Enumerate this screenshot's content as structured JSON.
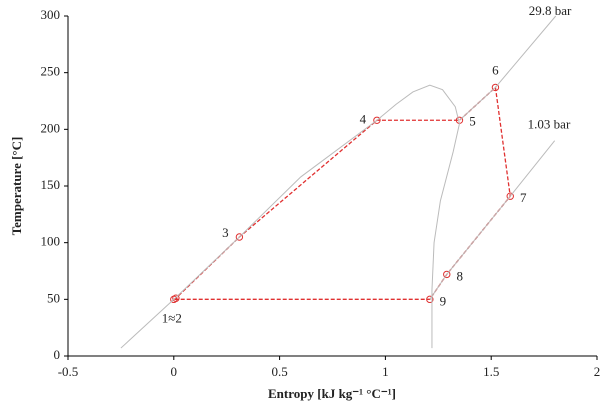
{
  "chart_data": {
    "type": "line",
    "xlabel": "Entropy [kJ kg⁻¹ °C⁻¹]",
    "ylabel": "Temperature [°C]",
    "xlim": [
      -0.5,
      2
    ],
    "xticks": [
      -0.5,
      0,
      0.5,
      1,
      1.5,
      2
    ],
    "ylim": [
      0,
      300
    ],
    "yticks": [
      0,
      50,
      100,
      150,
      200,
      250,
      300
    ],
    "grid": false,
    "series": [
      {
        "color": "#e03030",
        "dashed": true,
        "markers": true,
        "closed": true,
        "x": [
          0,
          0.01,
          0.31,
          0.96,
          1.35,
          1.52,
          1.59,
          1.29,
          1.21
        ],
        "values": [
          50,
          51,
          105,
          208,
          208,
          237,
          141,
          72,
          50
        ],
        "point_labels": [
          "1≈2",
          null,
          "3",
          "4",
          "5",
          "6",
          "7",
          "8",
          "9"
        ]
      },
      {
        "color": "#bbbbbb",
        "x": [
          -0.25,
          0.0,
          0.31,
          0.6,
          0.96,
          1.05,
          1.13,
          1.21,
          1.27,
          1.33,
          1.35,
          1.32,
          1.26,
          1.23,
          1.22,
          1.22
        ],
        "values": [
          7,
          50,
          105,
          158,
          208,
          222,
          233,
          239,
          235,
          220,
          205,
          180,
          137,
          100,
          58,
          7
        ]
      },
      {
        "name": "29.8 bar",
        "color": "#bbbbbb",
        "x": [
          1.35,
          1.52,
          1.805
        ],
        "values": [
          208,
          237,
          300
        ]
      },
      {
        "name": "1.03 bar",
        "color": "#bbbbbb",
        "x": [
          1.21,
          1.29,
          1.59,
          1.8
        ],
        "values": [
          50,
          72,
          141,
          190
        ]
      }
    ]
  }
}
